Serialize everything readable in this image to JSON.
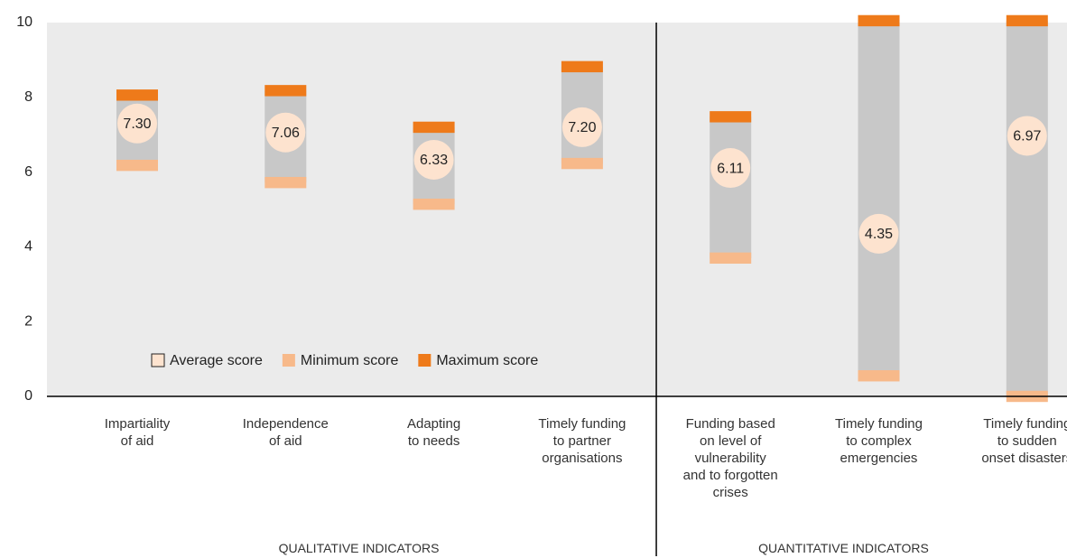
{
  "chart_data": {
    "type": "range",
    "categories": [
      "Impartiality\nof aid",
      "Independence\nof aid",
      "Adapting\nto needs",
      "Timely funding\nto partner\norganisations",
      "Funding based\non level of\nvulnerability\nand to forgotten\ncrises",
      "Timely funding\nto complex\nemergencies",
      "Timely funding\nto sudden\nonset disasters"
    ],
    "group_labels": [
      "QUALITATIVE INDICATORS",
      "QUANTITATIVE INDICATORS"
    ],
    "series": [
      {
        "name": "Average score",
        "color": "#fde3cf",
        "values": [
          7.3,
          7.06,
          6.33,
          7.2,
          6.11,
          4.35,
          6.97
        ],
        "value_labels": [
          "7.30",
          "7.06",
          "6.33",
          "7.20",
          "6.11",
          "4.35",
          "6.97"
        ]
      },
      {
        "name": "Minimum score",
        "color": "#f7b98a",
        "values": [
          6.18,
          5.72,
          5.14,
          6.23,
          3.7,
          0.55,
          0
        ]
      },
      {
        "name": "Maximum score",
        "color": "#ee7a1a",
        "values": [
          8.06,
          8.18,
          7.2,
          8.82,
          7.48,
          10.05,
          10.05
        ]
      }
    ],
    "range_color": "#c8c8c8",
    "ylim": [
      0,
      10
    ],
    "yticks": [
      0,
      2,
      4,
      6,
      8,
      10
    ]
  }
}
